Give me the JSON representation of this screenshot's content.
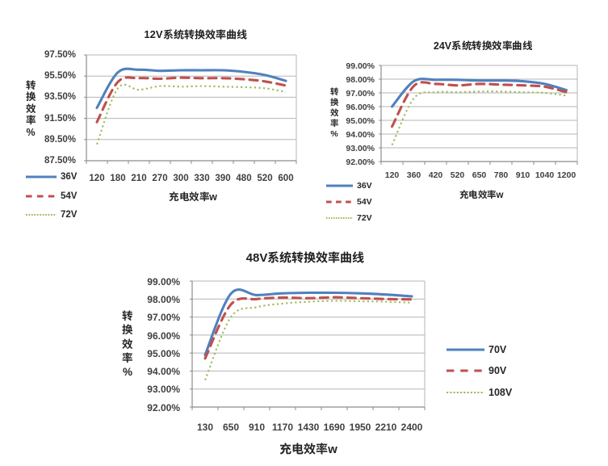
{
  "page": {
    "background": "#ffffff"
  },
  "chart_data": [
    {
      "type": "line",
      "title": "12V系统转换效率曲线",
      "xlabel": "充电效率w",
      "ylabel": "转换效率%",
      "categories": [
        "120",
        "180",
        "210",
        "270",
        "300",
        "330",
        "390",
        "480",
        "520",
        "600"
      ],
      "ylim": [
        87.5,
        97.5
      ],
      "ytick_values": [
        97.5,
        95.5,
        93.5,
        91.5,
        89.5,
        87.5
      ],
      "ytick_labels": [
        "97.50%",
        "95.50%",
        "93.50%",
        "91.50%",
        "89.50%",
        "87.50%"
      ],
      "grid": true,
      "legend_position": "bottom-left",
      "series": [
        {
          "name": "36V",
          "color": "#4f81bd",
          "style": "solid",
          "values": [
            92.5,
            95.85,
            96.1,
            96.0,
            96.05,
            96.05,
            96.05,
            95.9,
            95.6,
            95.05
          ]
        },
        {
          "name": "54V",
          "color": "#c0504d",
          "style": "dashed",
          "values": [
            91.15,
            94.95,
            95.3,
            95.25,
            95.35,
            95.3,
            95.3,
            95.2,
            95.0,
            94.6
          ]
        },
        {
          "name": "72V",
          "color": "#9bbb59",
          "style": "dotted",
          "values": [
            89.05,
            94.35,
            94.2,
            94.55,
            94.5,
            94.55,
            94.5,
            94.45,
            94.35,
            94.0
          ]
        }
      ]
    },
    {
      "type": "line",
      "title": "24V系统转换效率曲线",
      "xlabel": "充电效率w",
      "ylabel": "转换效率%",
      "categories": [
        "120",
        "360",
        "420",
        "520",
        "650",
        "780",
        "910",
        "1040",
        "1200"
      ],
      "ylim": [
        92.0,
        99.0
      ],
      "ytick_values": [
        99.0,
        98.0,
        97.0,
        96.0,
        95.0,
        94.0,
        93.0,
        92.0
      ],
      "ytick_labels": [
        "99.00%",
        "98.00%",
        "97.00%",
        "96.00%",
        "95.00%",
        "94.00%",
        "93.00%",
        "92.00%"
      ],
      "grid": true,
      "legend_position": "bottom-left",
      "series": [
        {
          "name": "36V",
          "color": "#4f81bd",
          "style": "solid",
          "values": [
            96.0,
            97.85,
            97.95,
            97.95,
            97.9,
            97.9,
            97.85,
            97.65,
            97.2
          ]
        },
        {
          "name": "54V",
          "color": "#c0504d",
          "style": "dashed",
          "values": [
            94.55,
            97.5,
            97.65,
            97.55,
            97.65,
            97.6,
            97.55,
            97.45,
            97.05
          ]
        },
        {
          "name": "72V",
          "color": "#9bbb59",
          "style": "dotted",
          "values": [
            93.2,
            96.6,
            97.05,
            97.05,
            97.1,
            97.1,
            97.05,
            97.0,
            96.8
          ]
        }
      ]
    },
    {
      "type": "line",
      "title": "48V系统转换效率曲线",
      "xlabel": "充电效率w",
      "ylabel": "转换效率%",
      "categories": [
        "130",
        "650",
        "910",
        "1170",
        "1430",
        "1690",
        "1950",
        "2210",
        "2400"
      ],
      "ylim": [
        92.0,
        99.0
      ],
      "ytick_values": [
        99.0,
        98.0,
        97.0,
        96.0,
        95.0,
        94.0,
        93.0,
        92.0
      ],
      "ytick_labels": [
        "99.00%",
        "98.00%",
        "97.00%",
        "96.00%",
        "95.00%",
        "94.00%",
        "93.00%",
        "92.00%"
      ],
      "grid": true,
      "legend_position": "right",
      "series": [
        {
          "name": "70V",
          "color": "#4f81bd",
          "style": "solid",
          "values": [
            94.9,
            98.3,
            98.22,
            98.32,
            98.35,
            98.35,
            98.32,
            98.25,
            98.15
          ]
        },
        {
          "name": "90V",
          "color": "#c0504d",
          "style": "dashed",
          "values": [
            94.7,
            97.7,
            98.0,
            98.08,
            98.05,
            98.1,
            98.05,
            98.0,
            97.98
          ]
        },
        {
          "name": "108V",
          "color": "#9bbb59",
          "style": "dotted",
          "values": [
            93.5,
            97.0,
            97.55,
            97.75,
            97.85,
            97.9,
            97.88,
            97.85,
            97.8
          ]
        }
      ]
    }
  ]
}
